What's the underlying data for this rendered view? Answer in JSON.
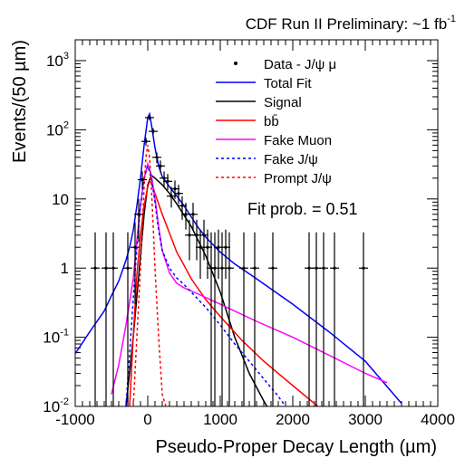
{
  "chart_data": {
    "type": "scatter",
    "title": {
      "main": "CDF Run II Preliminary: ~1 fb",
      "sup": "-1"
    },
    "xlabel": "Pseudo-Proper Decay Length (µm)",
    "ylabel": "Events/(50 µm)",
    "xlim": [
      -1000,
      4000
    ],
    "ylim": [
      0.01,
      2000
    ],
    "yscale": "log",
    "x_ticks": [
      -1000,
      0,
      1000,
      2000,
      3000,
      4000
    ],
    "x_tick_labels": [
      "-1000",
      "0",
      "1000",
      "2000",
      "3000",
      "4000"
    ],
    "y_ticks": [
      {
        "value": 0.01,
        "base": "10",
        "exp": "-2"
      },
      {
        "value": 0.1,
        "base": "10",
        "exp": "-1"
      },
      {
        "value": 1,
        "base": "1",
        "exp": ""
      },
      {
        "value": 10,
        "base": "10",
        "exp": ""
      },
      {
        "value": 100,
        "base": "10",
        "exp": "2"
      },
      {
        "value": 1000,
        "base": "10",
        "exp": "3"
      }
    ],
    "annotation": "Fit prob. = 0.51",
    "legend": {
      "position": "top-right",
      "entries": [
        {
          "label": "Data - J/ψ μ",
          "style": "marker",
          "color": "#000000"
        },
        {
          "label": "Total Fit",
          "style": "solid",
          "color": "#0000ff"
        },
        {
          "label": "Signal",
          "style": "solid",
          "color": "#000000"
        },
        {
          "label": "bb̄",
          "style": "solid",
          "color": "#ff0000"
        },
        {
          "label": "Fake Muon",
          "style": "solid",
          "color": "#ff00ff"
        },
        {
          "label": "Fake J/ψ",
          "style": "dashed",
          "color": "#0000ff"
        },
        {
          "label": "Prompt J/ψ",
          "style": "dashed",
          "color": "#ff0000"
        }
      ]
    },
    "data_points": [
      {
        "x": -725,
        "y": 1,
        "lo": 0.01,
        "hi": 3.3
      },
      {
        "x": -575,
        "y": 1,
        "lo": 0.01,
        "hi": 3.3
      },
      {
        "x": -475,
        "y": 1,
        "lo": 0.01,
        "hi": 3.3
      },
      {
        "x": -275,
        "y": 1,
        "lo": 0.01,
        "hi": 3.3
      },
      {
        "x": -175,
        "y": 2,
        "lo": 0.3,
        "hi": 4.6
      },
      {
        "x": -125,
        "y": 6,
        "lo": 2.4,
        "hi": 10
      },
      {
        "x": -75,
        "y": 19,
        "lo": 14,
        "hi": 25
      },
      {
        "x": -25,
        "y": 68,
        "lo": 59,
        "hi": 77
      },
      {
        "x": 25,
        "y": 150,
        "lo": 138,
        "hi": 162
      },
      {
        "x": 75,
        "y": 95,
        "lo": 85,
        "hi": 105
      },
      {
        "x": 125,
        "y": 40,
        "lo": 33,
        "hi": 47
      },
      {
        "x": 175,
        "y": 30,
        "lo": 24,
        "hi": 36
      },
      {
        "x": 225,
        "y": 20,
        "lo": 15,
        "hi": 25
      },
      {
        "x": 275,
        "y": 18,
        "lo": 13.5,
        "hi": 23
      },
      {
        "x": 325,
        "y": 11,
        "lo": 7.5,
        "hi": 15
      },
      {
        "x": 375,
        "y": 14,
        "lo": 10,
        "hi": 18.5
      },
      {
        "x": 425,
        "y": 12,
        "lo": 8.5,
        "hi": 16
      },
      {
        "x": 475,
        "y": 8,
        "lo": 5,
        "hi": 11
      },
      {
        "x": 525,
        "y": 6,
        "lo": 3.6,
        "hi": 8.8
      },
      {
        "x": 575,
        "y": 3,
        "lo": 1.3,
        "hi": 5
      },
      {
        "x": 625,
        "y": 6,
        "lo": 3.6,
        "hi": 8.8
      },
      {
        "x": 675,
        "y": 3,
        "lo": 1.3,
        "hi": 5
      },
      {
        "x": 725,
        "y": 2,
        "lo": 0.7,
        "hi": 3.6
      },
      {
        "x": 775,
        "y": 3,
        "lo": 1.3,
        "hi": 5
      },
      {
        "x": 825,
        "y": 2,
        "lo": 0.7,
        "hi": 3.6
      },
      {
        "x": 875,
        "y": 1,
        "lo": 0.01,
        "hi": 3.3
      },
      {
        "x": 925,
        "y": 1,
        "lo": 0.01,
        "hi": 3.3
      },
      {
        "x": 975,
        "y": 2,
        "lo": 0.7,
        "hi": 3.6
      },
      {
        "x": 1025,
        "y": 1,
        "lo": 0.01,
        "hi": 3.3
      },
      {
        "x": 1075,
        "y": 2,
        "lo": 0.7,
        "hi": 3.6
      },
      {
        "x": 1125,
        "y": 1,
        "lo": 0.01,
        "hi": 3.3
      },
      {
        "x": 1325,
        "y": 1,
        "lo": 0.01,
        "hi": 3.3
      },
      {
        "x": 1475,
        "y": 1,
        "lo": 0.01,
        "hi": 3.3
      },
      {
        "x": 1725,
        "y": 1,
        "lo": 0.01,
        "hi": 3.3
      },
      {
        "x": 2225,
        "y": 1,
        "lo": 0.01,
        "hi": 3.3
      },
      {
        "x": 2325,
        "y": 1,
        "lo": 0.01,
        "hi": 3.3
      },
      {
        "x": 2425,
        "y": 1,
        "lo": 0.01,
        "hi": 3.3
      },
      {
        "x": 2575,
        "y": 1,
        "lo": 0.01,
        "hi": 3.3
      },
      {
        "x": 2975,
        "y": 1,
        "lo": 0.01,
        "hi": 3.3
      }
    ],
    "series": [
      {
        "name": "Total Fit",
        "color": "#0000ff",
        "dashed": false,
        "x": [
          -1000,
          -800,
          -600,
          -500,
          -400,
          -300,
          -250,
          -200,
          -150,
          -100,
          -50,
          0,
          25,
          50,
          100,
          150,
          200,
          300,
          400,
          500,
          600,
          700,
          800,
          1000,
          1200,
          1500,
          2000,
          2500,
          3000,
          3500
        ],
        "y": [
          0.058,
          0.12,
          0.24,
          0.4,
          0.65,
          1.3,
          2.0,
          3.5,
          8,
          20,
          60,
          150,
          170,
          120,
          55,
          30,
          21,
          15,
          11,
          8,
          5.5,
          3.8,
          2.8,
          1.7,
          1.15,
          0.7,
          0.3,
          0.12,
          0.045,
          0.011
        ]
      },
      {
        "name": "Signal",
        "color": "#000000",
        "dashed": false,
        "x": [
          -300,
          -200,
          -100,
          -50,
          0,
          50,
          100,
          200,
          300,
          400,
          600,
          800,
          1000,
          1200,
          1400,
          1600,
          1700
        ],
        "y": [
          0.01,
          0.1,
          1.5,
          6,
          16,
          22,
          20,
          16,
          12,
          8.5,
          4,
          1.5,
          0.45,
          0.1,
          0.03,
          0.012,
          0.008
        ]
      },
      {
        "name": "bb̄",
        "color": "#ff0000",
        "dashed": false,
        "x": [
          -250,
          -200,
          -150,
          -100,
          -50,
          0,
          25,
          50,
          100,
          200,
          300,
          400,
          500,
          600,
          800,
          1000,
          1300,
          1600,
          2000,
          2400
        ],
        "y": [
          0.01,
          0.1,
          0.8,
          3,
          8,
          15,
          18,
          17,
          12,
          6,
          3.2,
          1.7,
          1.1,
          0.7,
          0.35,
          0.2,
          0.09,
          0.045,
          0.02,
          0.009
        ]
      },
      {
        "name": "Fake Muon",
        "color": "#ff00ff",
        "dashed": false,
        "x": [
          -500,
          -400,
          -300,
          -200,
          -150,
          -100,
          -50,
          0,
          50,
          100,
          150,
          200,
          300,
          400,
          500,
          700,
          1000,
          1500,
          2000,
          2500,
          3000,
          3300
        ],
        "y": [
          0.015,
          0.04,
          0.15,
          0.7,
          2.5,
          8,
          20,
          32,
          22,
          10,
          4,
          1.8,
          0.85,
          0.6,
          0.52,
          0.42,
          0.3,
          0.17,
          0.1,
          0.055,
          0.03,
          0.022
        ]
      },
      {
        "name": "Fake J/ψ",
        "color": "#0000ff",
        "dashed": true,
        "x": [
          -300,
          -200,
          -150,
          -100,
          -50,
          0,
          50,
          100,
          150,
          200,
          300,
          400,
          500,
          600,
          800,
          1000,
          1200,
          1400,
          1600,
          1800,
          1900
        ],
        "y": [
          0.01,
          0.35,
          2,
          8,
          20,
          30,
          20,
          9,
          3.5,
          1.8,
          1.0,
          0.72,
          0.58,
          0.45,
          0.27,
          0.15,
          0.08,
          0.045,
          0.025,
          0.014,
          0.01
        ]
      },
      {
        "name": "Prompt J/ψ",
        "color": "#ff0000",
        "dashed": true,
        "x": [
          -200,
          -150,
          -100,
          -75,
          -50,
          -25,
          0,
          25,
          50,
          75,
          100,
          150,
          200,
          250
        ],
        "y": [
          0.01,
          0.1,
          1,
          4,
          15,
          40,
          60,
          40,
          15,
          4,
          1,
          0.1,
          0.015,
          0.01
        ]
      }
    ]
  }
}
